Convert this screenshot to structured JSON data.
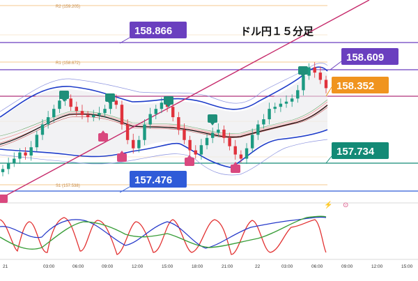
{
  "chart_data": {
    "type": "candlestick",
    "title": "ドル円１５分足",
    "ylim": [
      157.3,
      159.25
    ],
    "x_ticks": [
      "21",
      "03:00",
      "06:00",
      "09:00",
      "12:00",
      "15:00",
      "18:00",
      "21:00",
      "22",
      "03:00",
      "06:00",
      "09:00",
      "12:00",
      "15:00"
    ],
    "price_tags": [
      {
        "value": 158.866,
        "text": "158.866",
        "color": "#6a3fbf"
      },
      {
        "value": 158.609,
        "text": "158.609",
        "color": "#6a3fbf"
      },
      {
        "value": 158.352,
        "text": "158.352",
        "color": "#f0941e"
      },
      {
        "value": 157.734,
        "text": "157.734",
        "color": "#138a76"
      },
      {
        "value": 157.476,
        "text": "157.476",
        "color": "#2f5bd8"
      }
    ],
    "reference_lines": [
      {
        "label": "R2 (159.205)",
        "value": 159.205
      },
      {
        "label": "R1 (158.672)",
        "value": 158.672
      },
      {
        "label": "S1 (157.538)",
        "value": 157.538
      }
    ],
    "series_close": [
      157.62,
      157.68,
      157.72,
      157.78,
      157.75,
      157.83,
      157.95,
      158.05,
      158.12,
      158.2,
      158.28,
      158.3,
      158.22,
      158.18,
      158.14,
      158.12,
      158.14,
      158.16,
      158.2,
      158.28,
      158.24,
      158.05,
      157.9,
      157.82,
      157.9,
      158.05,
      158.15,
      158.2,
      158.26,
      158.22,
      158.12,
      158.0,
      157.9,
      157.8,
      157.76,
      157.85,
      157.92,
      157.97,
      158.0,
      157.92,
      157.84,
      157.76,
      157.72,
      157.82,
      157.95,
      158.05,
      158.1,
      158.2,
      158.22,
      158.25,
      158.27,
      158.3,
      158.38,
      158.52,
      158.6,
      158.55,
      158.48,
      158.4
    ],
    "annotation_symbols": [
      "⚡",
      "⊙"
    ]
  }
}
